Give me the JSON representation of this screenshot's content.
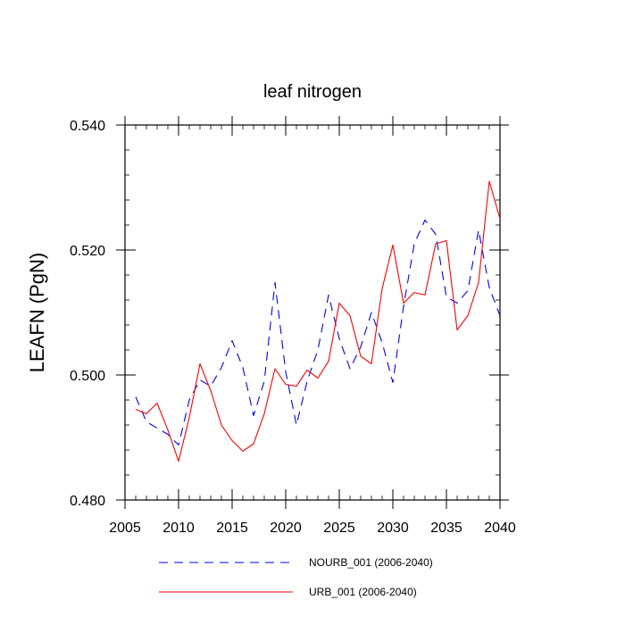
{
  "chart_data": {
    "type": "line",
    "title": "leaf nitrogen",
    "xlabel": "",
    "ylabel": "LEAFN  (PgN)",
    "xlim": [
      2005,
      2040
    ],
    "ylim": [
      0.48,
      0.54
    ],
    "x_ticks": [
      2005,
      2010,
      2015,
      2020,
      2025,
      2030,
      2035,
      2040
    ],
    "x_tick_labels": [
      "2005",
      "2010",
      "2015",
      "2020",
      "2025",
      "2030",
      "2035",
      "2040"
    ],
    "y_ticks": [
      0.48,
      0.5,
      0.52,
      0.54
    ],
    "y_tick_labels": [
      "0.480",
      "0.500",
      "0.520",
      "0.540"
    ],
    "x": [
      2006,
      2007,
      2008,
      2009,
      2010,
      2011,
      2012,
      2013,
      2014,
      2015,
      2016,
      2017,
      2018,
      2019,
      2020,
      2021,
      2022,
      2023,
      2024,
      2025,
      2026,
      2027,
      2028,
      2029,
      2030,
      2031,
      2032,
      2033,
      2034,
      2035,
      2036,
      2037,
      2038,
      2039,
      2040
    ],
    "series": [
      {
        "name": "NOURB_001 (2006-2040)",
        "color": "#0000ff",
        "style": "dashed",
        "values": [
          0.4965,
          0.4925,
          0.4915,
          0.4905,
          0.4888,
          0.496,
          0.4992,
          0.4982,
          0.5012,
          0.5055,
          0.5012,
          0.4935,
          0.499,
          0.5148,
          0.5005,
          0.492,
          0.499,
          0.504,
          0.5128,
          0.5058,
          0.501,
          0.5045,
          0.51,
          0.5052,
          0.4988,
          0.511,
          0.521,
          0.5248,
          0.5225,
          0.5125,
          0.5115,
          0.5135,
          0.5232,
          0.514,
          0.5095
        ]
      },
      {
        "name": "URB_001 (2006-2040)",
        "color": "#ff0000",
        "style": "solid",
        "values": [
          0.4945,
          0.4938,
          0.4955,
          0.4912,
          0.4862,
          0.4932,
          0.5018,
          0.4975,
          0.492,
          0.4895,
          0.4878,
          0.489,
          0.4938,
          0.501,
          0.4985,
          0.4982,
          0.5008,
          0.4995,
          0.5022,
          0.5115,
          0.5095,
          0.503,
          0.5018,
          0.5138,
          0.5208,
          0.5115,
          0.5132,
          0.5128,
          0.521,
          0.5215,
          0.5072,
          0.5095,
          0.5148,
          0.531,
          0.525
        ]
      }
    ],
    "legend_position": "bottom-center"
  }
}
